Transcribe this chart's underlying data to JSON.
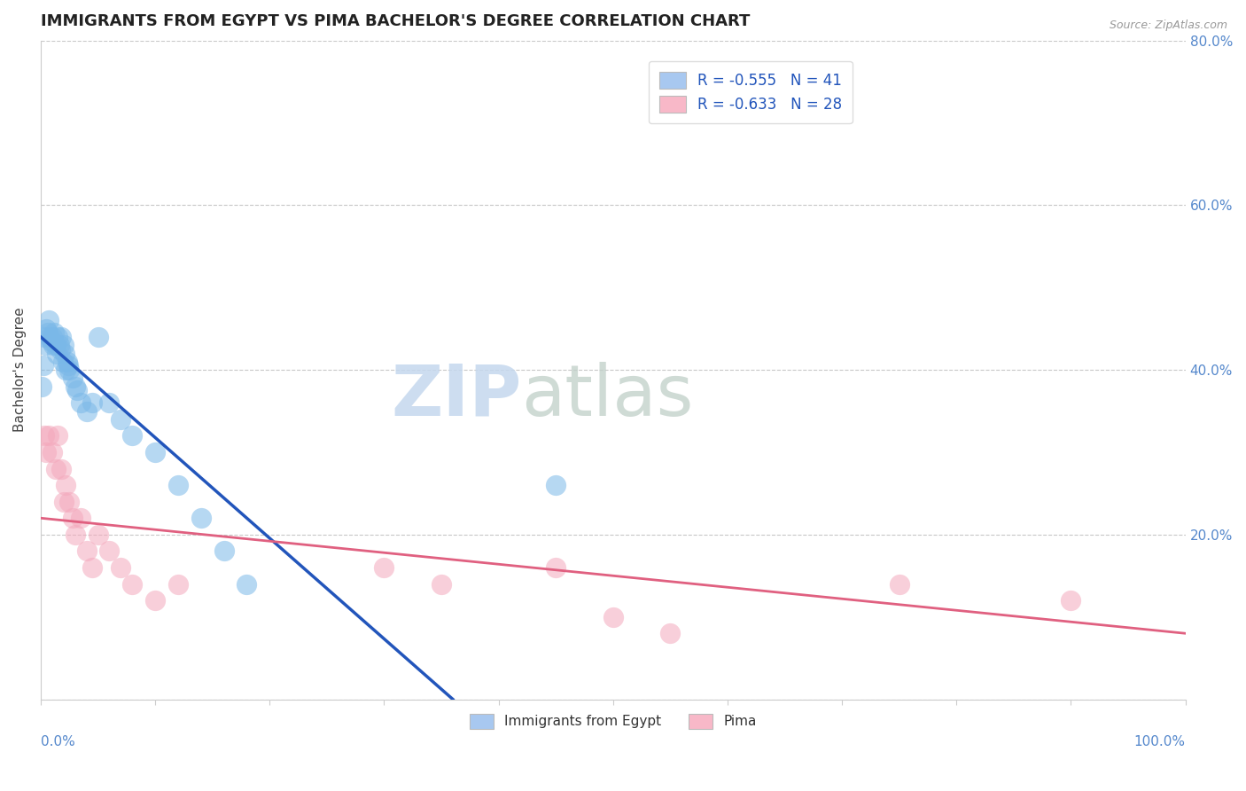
{
  "title": "IMMIGRANTS FROM EGYPT VS PIMA BACHELOR'S DEGREE CORRELATION CHART",
  "source": "Source: ZipAtlas.com",
  "ylabel": "Bachelor's Degree",
  "legend_r_entries": [
    {
      "R": "-0.555",
      "N": "41",
      "color": "#a8c8f0"
    },
    {
      "R": "-0.633",
      "N": "28",
      "color": "#f8b8c8"
    }
  ],
  "legend_name_entries": [
    {
      "label": "Immigrants from Egypt",
      "color": "#a8c8f0"
    },
    {
      "label": "Pima",
      "color": "#f8b8c8"
    }
  ],
  "blue_scatter_x": [
    0.1,
    0.2,
    0.3,
    0.4,
    0.5,
    0.6,
    0.7,
    0.8,
    0.9,
    1.0,
    1.1,
    1.2,
    1.3,
    1.4,
    1.5,
    1.6,
    1.7,
    1.8,
    1.9,
    2.0,
    2.1,
    2.2,
    2.3,
    2.4,
    2.5,
    2.8,
    3.0,
    3.2,
    3.5,
    4.0,
    4.5,
    5.0,
    6.0,
    7.0,
    8.0,
    10.0,
    12.0,
    14.0,
    16.0,
    18.0,
    45.0
  ],
  "blue_scatter_y": [
    38.0,
    40.5,
    44.0,
    43.0,
    45.0,
    44.5,
    46.0,
    44.0,
    43.5,
    44.0,
    43.0,
    44.5,
    43.0,
    42.0,
    44.0,
    43.0,
    42.5,
    44.0,
    41.0,
    43.0,
    42.0,
    40.0,
    41.0,
    40.5,
    40.0,
    39.0,
    38.0,
    37.5,
    36.0,
    35.0,
    36.0,
    44.0,
    36.0,
    34.0,
    32.0,
    30.0,
    26.0,
    22.0,
    18.0,
    14.0,
    26.0
  ],
  "pink_scatter_x": [
    0.3,
    0.5,
    0.7,
    1.0,
    1.3,
    1.5,
    1.8,
    2.0,
    2.2,
    2.5,
    2.8,
    3.0,
    3.5,
    4.0,
    4.5,
    5.0,
    6.0,
    7.0,
    8.0,
    10.0,
    12.0,
    30.0,
    35.0,
    45.0,
    50.0,
    55.0,
    75.0,
    90.0
  ],
  "pink_scatter_y": [
    32.0,
    30.0,
    32.0,
    30.0,
    28.0,
    32.0,
    28.0,
    24.0,
    26.0,
    24.0,
    22.0,
    20.0,
    22.0,
    18.0,
    16.0,
    20.0,
    18.0,
    16.0,
    14.0,
    12.0,
    14.0,
    16.0,
    14.0,
    16.0,
    10.0,
    8.0,
    14.0,
    12.0
  ],
  "blue_line_x": [
    0.0,
    36.0
  ],
  "blue_line_y": [
    44.0,
    0.0
  ],
  "pink_line_x": [
    0.0,
    100.0
  ],
  "pink_line_y": [
    22.0,
    8.0
  ],
  "xlim": [
    0.0,
    100.0
  ],
  "ylim": [
    0.0,
    80.0
  ],
  "yticks": [
    0.0,
    20.0,
    40.0,
    60.0,
    80.0
  ],
  "right_ytick_labels": [
    "",
    "20.0%",
    "40.0%",
    "60.0%",
    "80.0%"
  ],
  "background_color": "#ffffff",
  "grid_color": "#c8c8c8",
  "blue_dot_color": "#7ab8e8",
  "pink_dot_color": "#f4a8bc",
  "blue_line_color": "#2255bb",
  "pink_line_color": "#e06080",
  "title_fontsize": 13,
  "axis_label_fontsize": 11,
  "tick_fontsize": 11,
  "source_fontsize": 9
}
